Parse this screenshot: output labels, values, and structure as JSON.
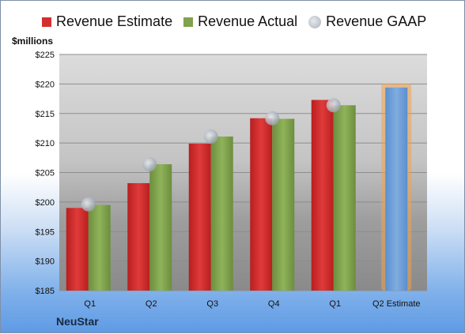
{
  "legend": {
    "estimate": "Revenue Estimate",
    "actual": "Revenue Actual",
    "gaap": "Revenue GAAP"
  },
  "company": "NeuStar",
  "colors": {
    "estimate": "#d32f2f",
    "actual": "#7fa24c",
    "gaap": "#b3b9c2",
    "forecast": "#6f9fd8",
    "forecast_glow": "#f2a24a"
  },
  "chart_data": {
    "type": "bar",
    "ylabel": "$millions",
    "ylim": [
      185,
      225
    ],
    "yticks": [
      185,
      190,
      195,
      200,
      205,
      210,
      215,
      220,
      225
    ],
    "ytick_labels": [
      "$185",
      "$190",
      "$195",
      "$200",
      "$205",
      "$210",
      "$215",
      "$220",
      "$225"
    ],
    "categories": [
      "Q1",
      "Q2",
      "Q3",
      "Q4",
      "Q1",
      "Q2 Estimate"
    ],
    "series": [
      {
        "name": "Revenue Estimate",
        "values": [
          199.0,
          203.2,
          209.9,
          214.2,
          217.3,
          null
        ]
      },
      {
        "name": "Revenue Actual",
        "values": [
          199.5,
          206.4,
          211.1,
          214.1,
          216.4,
          null
        ]
      },
      {
        "name": "Revenue GAAP",
        "values": [
          199.6,
          206.4,
          211.1,
          214.2,
          216.4,
          null
        ]
      }
    ],
    "forecast": {
      "category": "Q2 Estimate",
      "value": 219.4
    },
    "grid": true
  }
}
